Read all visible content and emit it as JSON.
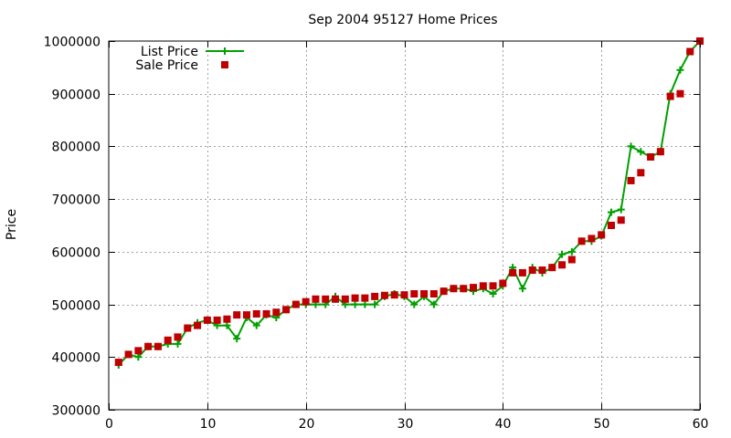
{
  "chart_data": {
    "type": "line",
    "title": "Sep 2004 95127 Home Prices",
    "xlabel": "",
    "ylabel": "Price",
    "xlim": [
      0,
      60
    ],
    "ylim": [
      300000,
      1000000
    ],
    "x_ticks": [
      0,
      10,
      20,
      30,
      40,
      50,
      60
    ],
    "y_ticks": [
      300000,
      400000,
      500000,
      600000,
      700000,
      800000,
      900000,
      1000000
    ],
    "grid": true,
    "legend_position": "top-left",
    "series": [
      {
        "name": "List Price",
        "style": "lines+points",
        "marker": "plus",
        "color": "#00a000",
        "x": [
          1,
          2,
          3,
          4,
          5,
          6,
          7,
          8,
          9,
          10,
          11,
          12,
          13,
          14,
          15,
          16,
          17,
          18,
          19,
          20,
          21,
          22,
          23,
          24,
          25,
          26,
          27,
          28,
          29,
          30,
          31,
          32,
          33,
          34,
          35,
          36,
          37,
          38,
          39,
          40,
          41,
          42,
          43,
          44,
          45,
          46,
          47,
          48,
          49,
          50,
          51,
          52,
          53,
          54,
          55,
          56,
          57,
          58,
          59,
          60
        ],
        "y": [
          385000,
          405000,
          400000,
          420000,
          420000,
          425000,
          425000,
          455000,
          465000,
          470000,
          460000,
          460000,
          435000,
          475000,
          460000,
          480000,
          475000,
          490000,
          500000,
          500000,
          500000,
          500000,
          515000,
          500000,
          500000,
          500000,
          500000,
          515000,
          520000,
          515000,
          500000,
          515000,
          500000,
          525000,
          530000,
          530000,
          525000,
          530000,
          520000,
          535000,
          570000,
          530000,
          570000,
          560000,
          570000,
          595000,
          600000,
          620000,
          620000,
          630000,
          675000,
          680000,
          800000,
          790000,
          780000,
          790000,
          900000,
          945000,
          980000,
          1000000
        ]
      },
      {
        "name": "Sale Price",
        "style": "points",
        "marker": "square",
        "color": "#c00000",
        "x": [
          1,
          2,
          3,
          4,
          5,
          6,
          7,
          8,
          9,
          10,
          11,
          12,
          13,
          14,
          15,
          16,
          17,
          18,
          19,
          20,
          21,
          22,
          23,
          24,
          25,
          26,
          27,
          28,
          29,
          30,
          31,
          32,
          33,
          34,
          35,
          36,
          37,
          38,
          39,
          40,
          41,
          42,
          43,
          44,
          45,
          46,
          47,
          48,
          49,
          50,
          51,
          52,
          53,
          54,
          55,
          56,
          57,
          58,
          59,
          60
        ],
        "y": [
          390000,
          405000,
          412000,
          420000,
          420000,
          432000,
          438000,
          455000,
          460000,
          470000,
          470000,
          472000,
          480000,
          480000,
          482000,
          482000,
          485000,
          490000,
          500000,
          505000,
          510000,
          510000,
          510000,
          510000,
          512000,
          512000,
          515000,
          517000,
          518000,
          518000,
          520000,
          520000,
          520000,
          525000,
          530000,
          530000,
          532000,
          535000,
          535000,
          540000,
          560000,
          560000,
          565000,
          565000,
          570000,
          575000,
          585000,
          620000,
          625000,
          632000,
          650000,
          660000,
          735000,
          750000,
          780000,
          790000,
          895000,
          900000,
          980000,
          1000000
        ]
      }
    ]
  }
}
